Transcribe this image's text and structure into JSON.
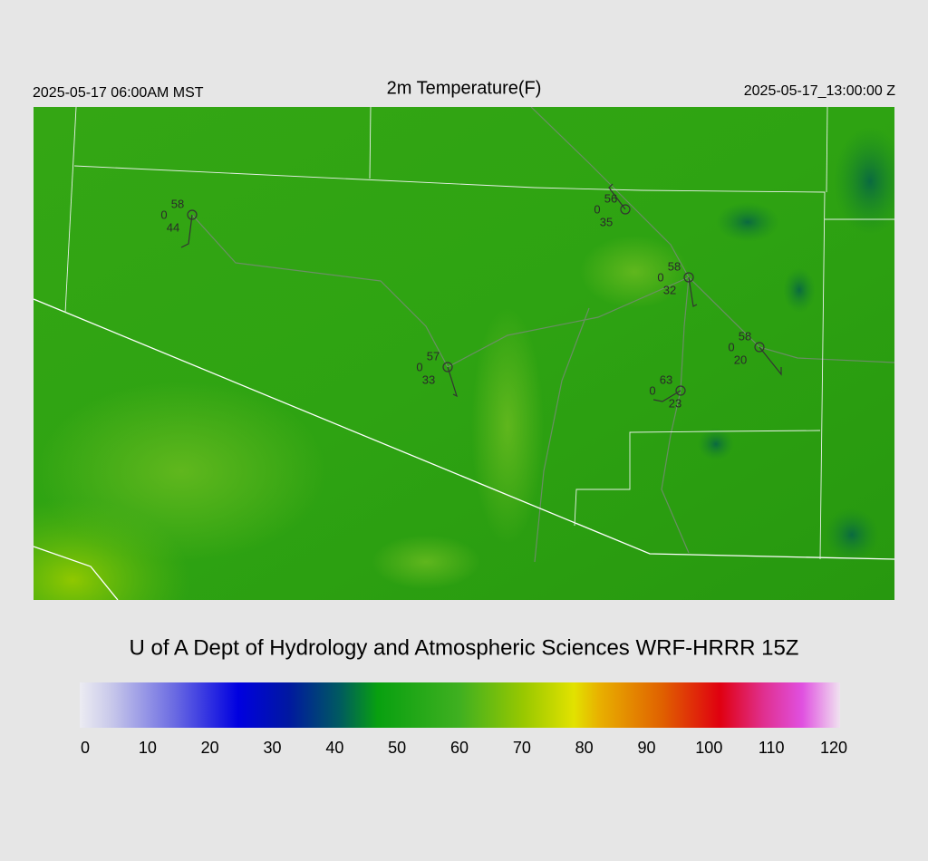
{
  "header": {
    "left": "2025-05-17 06:00AM MST",
    "title": "2m Temperature(F)",
    "right": "2025-05-17_13:00:00 Z"
  },
  "stations": [
    {
      "temperature": 58,
      "value": 0,
      "dewpoint": 44
    },
    {
      "temperature": 56,
      "value": 0,
      "dewpoint": 35
    },
    {
      "temperature": 58,
      "value": 0,
      "dewpoint": 32
    },
    {
      "temperature": 58,
      "value": 0,
      "dewpoint": 20
    },
    {
      "temperature": 57,
      "value": 0,
      "dewpoint": 33
    },
    {
      "temperature": 63,
      "value": 0,
      "dewpoint": 23
    }
  ],
  "footer": {
    "title": "U of A Dept of Hydrology and Atmospheric Sciences WRF-HRRR 15Z"
  },
  "colorbar": {
    "lim": [
      0,
      120
    ],
    "ticks": [
      0,
      10,
      20,
      30,
      40,
      50,
      60,
      70,
      80,
      90,
      100,
      110,
      120
    ],
    "colormap": [
      {
        "value": 0,
        "color": "#ececf2"
      },
      {
        "value": 5,
        "color": "#c8c8ea"
      },
      {
        "value": 15,
        "color": "#6a6ae2"
      },
      {
        "value": 25,
        "color": "#0000e0"
      },
      {
        "value": 33,
        "color": "#0018a0"
      },
      {
        "value": 41,
        "color": "#005a60"
      },
      {
        "value": 47,
        "color": "#08a010"
      },
      {
        "value": 60,
        "color": "#40b020"
      },
      {
        "value": 70,
        "color": "#98c800"
      },
      {
        "value": 78,
        "color": "#e2e200"
      },
      {
        "value": 82,
        "color": "#e8b000"
      },
      {
        "value": 92,
        "color": "#e06000"
      },
      {
        "value": 101,
        "color": "#e00010"
      },
      {
        "value": 108,
        "color": "#e03090"
      },
      {
        "value": 114,
        "color": "#e050e0"
      },
      {
        "value": 120,
        "color": "#f0e2f0"
      }
    ]
  }
}
